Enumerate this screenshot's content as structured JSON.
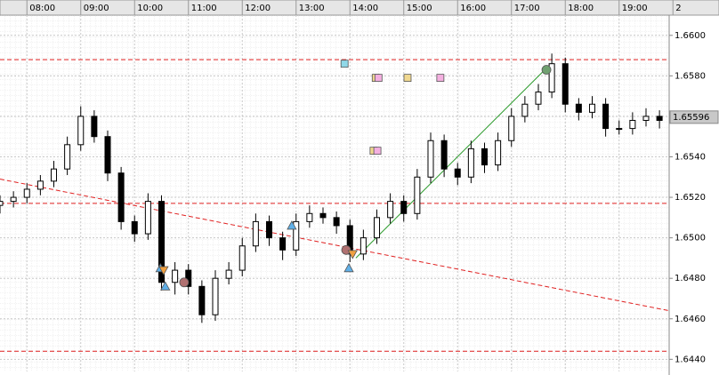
{
  "chart_data": {
    "type": "candlestick",
    "x": [
      7.5,
      7.75,
      8,
      8.25,
      8.5,
      8.75,
      9,
      9.25,
      9.5,
      9.75,
      10,
      10.25,
      10.5,
      10.75,
      11,
      11.25,
      11.5,
      11.75,
      12,
      12.25,
      12.5,
      12.75,
      13,
      13.25,
      13.5,
      13.75,
      14,
      14.25,
      14.5,
      14.75,
      15,
      15.25,
      15.5,
      15.75,
      16,
      16.25,
      16.5,
      16.75,
      17,
      17.25,
      17.5,
      17.75,
      18,
      18.25,
      18.5,
      18.75,
      19,
      19.25,
      19.5,
      19.75
    ],
    "open": [
      1.6516,
      1.6518,
      1.652,
      1.6524,
      1.6528,
      1.6534,
      1.6546,
      1.656,
      1.655,
      1.6532,
      1.6508,
      1.6502,
      1.6518,
      1.6478,
      1.6484,
      1.6476,
      1.6462,
      1.648,
      1.6484,
      1.6496,
      1.6508,
      1.65,
      1.6494,
      1.6508,
      1.6512,
      1.651,
      1.6506,
      1.6492,
      1.65,
      1.651,
      1.6518,
      1.6512,
      1.653,
      1.6548,
      1.6534,
      1.653,
      1.6544,
      1.6536,
      1.6548,
      1.656,
      1.6566,
      1.6572,
      1.6586,
      1.6566,
      1.6562,
      1.6566,
      1.6554,
      1.6554,
      1.6558,
      1.656
    ],
    "high": [
      1.6521,
      1.6523,
      1.6527,
      1.6531,
      1.6538,
      1.655,
      1.6565,
      1.6563,
      1.6553,
      1.6535,
      1.6511,
      1.6522,
      1.6521,
      1.6488,
      1.6487,
      1.6479,
      1.6484,
      1.6488,
      1.65,
      1.6512,
      1.6511,
      1.6503,
      1.6512,
      1.6516,
      1.6515,
      1.6513,
      1.6509,
      1.6504,
      1.6514,
      1.6522,
      1.6521,
      1.6534,
      1.6552,
      1.6551,
      1.6537,
      1.6548,
      1.6547,
      1.6552,
      1.6564,
      1.657,
      1.6576,
      1.6591,
      1.6589,
      1.6569,
      1.657,
      1.6569,
      1.6558,
      1.6562,
      1.6564,
      1.6563
    ],
    "low": [
      1.6512,
      1.6515,
      1.6517,
      1.6521,
      1.6525,
      1.6531,
      1.6543,
      1.6547,
      1.6528,
      1.6504,
      1.6498,
      1.6499,
      1.6474,
      1.6472,
      1.6472,
      1.6458,
      1.6459,
      1.6477,
      1.6481,
      1.6493,
      1.6496,
      1.6489,
      1.6491,
      1.6505,
      1.6507,
      1.6502,
      1.6488,
      1.6489,
      1.6497,
      1.6507,
      1.6508,
      1.6509,
      1.6527,
      1.653,
      1.6526,
      1.6527,
      1.6532,
      1.6533,
      1.6545,
      1.6557,
      1.6563,
      1.6569,
      1.6562,
      1.6558,
      1.6559,
      1.655,
      1.6551,
      1.6551,
      1.6555,
      1.6554
    ],
    "close": [
      1.6518,
      1.652,
      1.6524,
      1.6528,
      1.6534,
      1.6546,
      1.656,
      1.655,
      1.6532,
      1.6508,
      1.6502,
      1.6518,
      1.6478,
      1.6484,
      1.6476,
      1.6462,
      1.648,
      1.6484,
      1.6496,
      1.6508,
      1.65,
      1.6494,
      1.6508,
      1.6512,
      1.651,
      1.6506,
      1.6492,
      1.65,
      1.651,
      1.6518,
      1.6512,
      1.653,
      1.6548,
      1.6534,
      1.653,
      1.6544,
      1.6536,
      1.6548,
      1.656,
      1.6566,
      1.6572,
      1.6586,
      1.6566,
      1.6562,
      1.6566,
      1.6554,
      1.6554,
      1.6558,
      1.656,
      1.6558
    ],
    "up_color": "#ffffff",
    "down_color": "#000000",
    "xlim": [
      7.5,
      19.93
    ],
    "ylim": [
      1.6434,
      1.661
    ],
    "xticks": [
      {
        "value": 8,
        "label": "08:00"
      },
      {
        "value": 9,
        "label": "09:00"
      },
      {
        "value": 10,
        "label": "10:00"
      },
      {
        "value": 11,
        "label": "11:00"
      },
      {
        "value": 12,
        "label": "12:00"
      },
      {
        "value": 13,
        "label": "13:00"
      },
      {
        "value": 14,
        "label": "14:00"
      },
      {
        "value": 15,
        "label": "15:00"
      },
      {
        "value": 16,
        "label": "16:00"
      },
      {
        "value": 17,
        "label": "17:00"
      },
      {
        "value": 18,
        "label": "18:00"
      },
      {
        "value": 19,
        "label": "19:00"
      },
      {
        "value": 20,
        "label": "2"
      }
    ],
    "yticks": [
      {
        "value": 1.644,
        "label": "1.6440"
      },
      {
        "value": 1.646,
        "label": "1.6460"
      },
      {
        "value": 1.648,
        "label": "1.6480"
      },
      {
        "value": 1.65,
        "label": "1.6500"
      },
      {
        "value": 1.652,
        "label": "1.6520"
      },
      {
        "value": 1.654,
        "label": "1.6540"
      },
      {
        "value": 1.656,
        "label": "1.6560"
      },
      {
        "value": 1.658,
        "label": "1.6580"
      },
      {
        "value": 1.66,
        "label": "1.6600"
      }
    ],
    "grid": true,
    "current_price": {
      "value": 1.65596,
      "label": "1.65596"
    },
    "hlines": [
      {
        "value": 1.6588,
        "color": "#e02020"
      },
      {
        "value": 1.6517,
        "color": "#e02020"
      },
      {
        "value": 1.6444,
        "color": "#e02020"
      }
    ],
    "trendlines": [
      {
        "x": [
          7.5,
          19.93
        ],
        "y": [
          1.6529,
          1.6464
        ],
        "color": "#e02020",
        "dashed": true
      },
      {
        "x": [
          14.11,
          17.62
        ],
        "y": [
          1.649,
          1.6583
        ],
        "color": "#2a9a2a",
        "dashed": false
      }
    ],
    "markers": [
      {
        "shape": "square",
        "color": "#8fd8e8",
        "x": 13.9,
        "y": 1.6586
      },
      {
        "shape": "square",
        "color": "#f0d890",
        "x": 14.48,
        "y": 1.6579
      },
      {
        "shape": "square",
        "color": "#f4b0e0",
        "x": 14.53,
        "y": 1.6579
      },
      {
        "shape": "square",
        "color": "#f0d890",
        "x": 15.07,
        "y": 1.6579
      },
      {
        "shape": "square",
        "color": "#f4b0e0",
        "x": 15.68,
        "y": 1.6579
      },
      {
        "shape": "square",
        "color": "#f0d890",
        "x": 14.44,
        "y": 1.6543
      },
      {
        "shape": "square",
        "color": "#f4b0e0",
        "x": 14.51,
        "y": 1.6543
      },
      {
        "shape": "circle",
        "color": "#b07070",
        "x": 10.92,
        "y": 1.6478
      },
      {
        "shape": "circle",
        "color": "#b07070",
        "x": 13.93,
        "y": 1.6494
      },
      {
        "shape": "circle",
        "color": "#70a070",
        "x": 17.65,
        "y": 1.6583
      },
      {
        "shape": "triangle-up",
        "color": "#60b0e8",
        "x": 10.48,
        "y": 1.6485
      },
      {
        "shape": "triangle-up",
        "color": "#60b0e8",
        "x": 10.57,
        "y": 1.6476
      },
      {
        "shape": "triangle-up",
        "color": "#60b0e8",
        "x": 12.92,
        "y": 1.6506
      },
      {
        "shape": "triangle-up",
        "color": "#60b0e8",
        "x": 13.98,
        "y": 1.6485
      },
      {
        "shape": "triangle-down",
        "color": "#f0a040",
        "x": 14.05,
        "y": 1.6492
      },
      {
        "shape": "triangle-down",
        "color": "#f0a040",
        "x": 10.54,
        "y": 1.6484
      }
    ]
  }
}
